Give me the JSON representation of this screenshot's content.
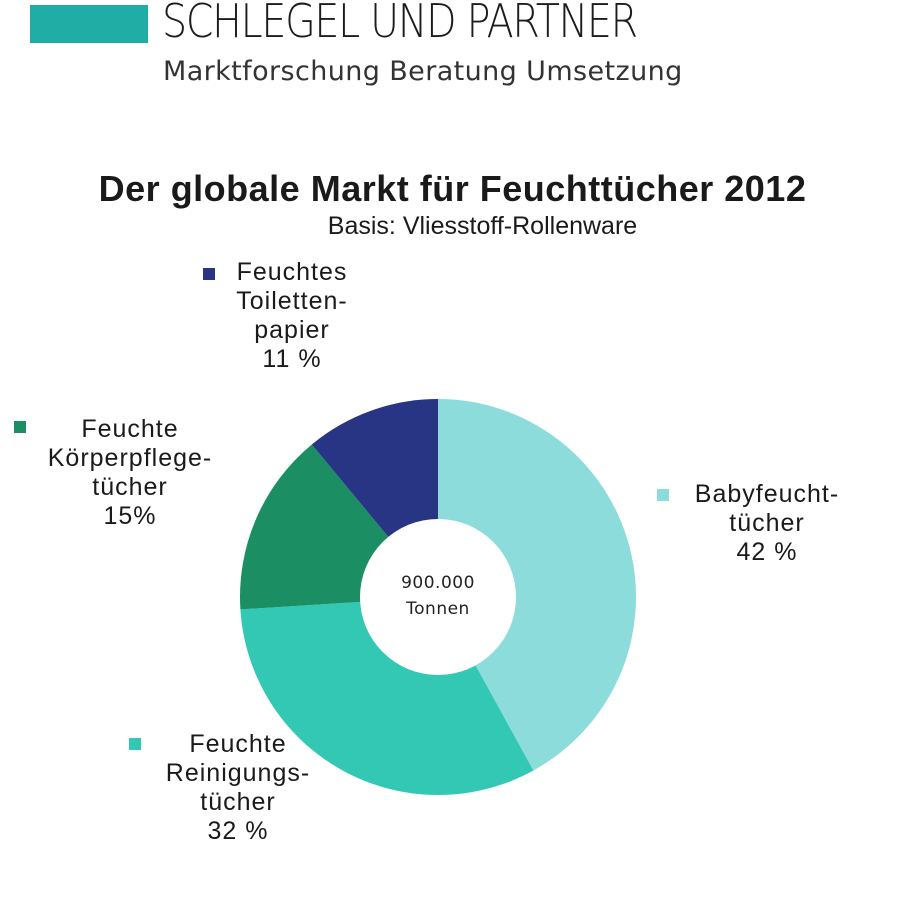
{
  "header": {
    "company": "SCHLEGEL UND PARTNER",
    "tagline": "Marktforschung  Beratung  Umsetzung",
    "brand_color": "#20ada6"
  },
  "chart_data": {
    "type": "pie",
    "variant": "donut",
    "title": "Der globale Markt für Feuchttücher 2012",
    "subtitle": "Basis: Vliesstoff-Rollenware",
    "center_label": [
      "900.000",
      "Tonnen"
    ],
    "categories": [
      "Babyfeuchttücher",
      "Feuchte Reinigungstücher",
      "Feuchte Körperpflegetücher",
      "Feuchtes Toilettenpapier"
    ],
    "values": [
      42,
      32,
      15,
      11
    ],
    "unit": "%",
    "colors": [
      "#8ddcdc",
      "#33c8b4",
      "#1b8f63",
      "#283484"
    ],
    "start_angle": "12 o'clock",
    "direction": "clockwise",
    "legend_position": "inline labels around chart"
  },
  "labels": {
    "baby": {
      "lines": [
        "Babyfeucht-",
        "tücher"
      ],
      "value": "42 %"
    },
    "reinigung": {
      "lines": [
        "Feuchte",
        "Reinigungs-",
        "tücher"
      ],
      "value": "32 %"
    },
    "koerper": {
      "lines": [
        "Feuchte",
        "Körperpflege-",
        "tücher"
      ],
      "value": "15%"
    },
    "toilette": {
      "lines": [
        "Feuchtes",
        "Toiletten-",
        "papier"
      ],
      "value": "11 %"
    }
  }
}
